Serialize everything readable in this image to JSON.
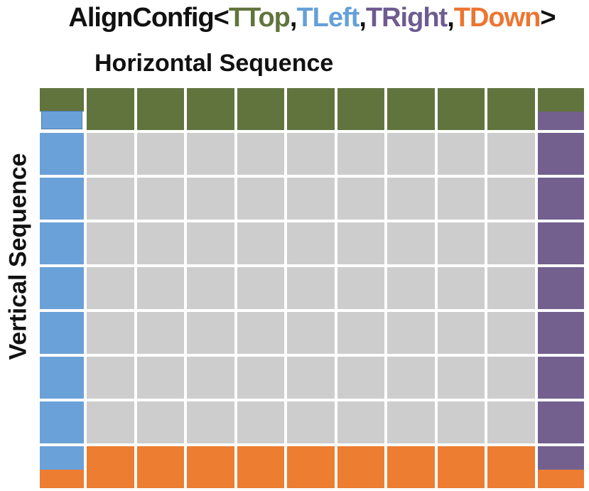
{
  "title": {
    "prefix": "AlignConfig<",
    "separator": ",",
    "suffix": ">",
    "params": [
      {
        "label": "TTop",
        "color": "#61743E"
      },
      {
        "label": "TLeft",
        "color": "#65A0D9"
      },
      {
        "label": "TRight",
        "color": "#6E5B90"
      },
      {
        "label": "TDown",
        "color": "#ED7531"
      }
    ]
  },
  "axes": {
    "horizontal_label": "Horizontal Sequence",
    "vertical_label": "Vertical Sequence"
  },
  "grid": {
    "rows": 9,
    "cols": 11,
    "colors": {
      "top": "#61743E",
      "left": "#6BA1D9",
      "right": "#73608E",
      "bottom": "#ED7D31",
      "inner": "#CDCDCD"
    },
    "corners": {
      "top_left": {
        "top": "top",
        "bottom": "left",
        "inset": true
      },
      "top_right": {
        "top": "top",
        "bottom": "right"
      },
      "bottom_left": {
        "top": "left",
        "bottom": "bottom"
      },
      "bottom_right": {
        "top": "right",
        "bottom": "bottom"
      }
    }
  }
}
